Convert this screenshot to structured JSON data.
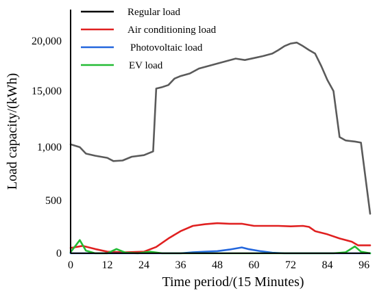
{
  "chart_data": {
    "type": "line",
    "xlabel": "Time period/(15 Minutes)",
    "ylabel": "Load capacity/(kWh)",
    "xlim": [
      0,
      98
    ],
    "x_ticks": [
      0,
      12,
      24,
      36,
      48,
      60,
      72,
      84,
      96
    ],
    "y_ticks": [
      {
        "label": "0",
        "level": 0
      },
      {
        "label": "500",
        "level": 1
      },
      {
        "label": "1,000",
        "level": 2
      },
      {
        "label": "15,000",
        "level": 3
      },
      {
        "label": "20,000",
        "level": 4
      }
    ],
    "y_axis_note": "non-linear (broken) y-axis; y values below are given in tick-level units",
    "legend_position": "top-left",
    "grid": false,
    "series": [
      {
        "name": "Regular load",
        "legend_color": "#000000",
        "color": "#5a5a5a",
        "points": [
          [
            0,
            2.05
          ],
          [
            3,
            2.0
          ],
          [
            5,
            1.88
          ],
          [
            8,
            1.84
          ],
          [
            12,
            1.8
          ],
          [
            14,
            1.74
          ],
          [
            17,
            1.75
          ],
          [
            20,
            1.82
          ],
          [
            24,
            1.85
          ],
          [
            27,
            1.92
          ],
          [
            28,
            3.05
          ],
          [
            30,
            3.08
          ],
          [
            32,
            3.12
          ],
          [
            34,
            3.25
          ],
          [
            36,
            3.3
          ],
          [
            39,
            3.35
          ],
          [
            42,
            3.45
          ],
          [
            45,
            3.5
          ],
          [
            48,
            3.55
          ],
          [
            51,
            3.6
          ],
          [
            54,
            3.65
          ],
          [
            57,
            3.62
          ],
          [
            60,
            3.66
          ],
          [
            63,
            3.7
          ],
          [
            66,
            3.75
          ],
          [
            68,
            3.82
          ],
          [
            70,
            3.9
          ],
          [
            72,
            3.95
          ],
          [
            74,
            3.97
          ],
          [
            76,
            3.9
          ],
          [
            78,
            3.82
          ],
          [
            80,
            3.75
          ],
          [
            82,
            3.5
          ],
          [
            84,
            3.22
          ],
          [
            86,
            3.0
          ],
          [
            88,
            2.18
          ],
          [
            90,
            2.12
          ],
          [
            93,
            2.1
          ],
          [
            95,
            2.08
          ],
          [
            97,
            1.2
          ],
          [
            98,
            0.75
          ]
        ]
      },
      {
        "name": "Air conditioning load",
        "color": "#e02020",
        "points": [
          [
            0,
            0.1
          ],
          [
            4,
            0.14
          ],
          [
            8,
            0.08
          ],
          [
            12,
            0.03
          ],
          [
            18,
            0.02
          ],
          [
            24,
            0.03
          ],
          [
            28,
            0.12
          ],
          [
            32,
            0.28
          ],
          [
            36,
            0.42
          ],
          [
            40,
            0.52
          ],
          [
            44,
            0.55
          ],
          [
            48,
            0.57
          ],
          [
            52,
            0.56
          ],
          [
            56,
            0.56
          ],
          [
            60,
            0.52
          ],
          [
            64,
            0.52
          ],
          [
            68,
            0.52
          ],
          [
            72,
            0.51
          ],
          [
            76,
            0.52
          ],
          [
            78,
            0.5
          ],
          [
            80,
            0.42
          ],
          [
            84,
            0.36
          ],
          [
            88,
            0.28
          ],
          [
            92,
            0.22
          ],
          [
            94,
            0.15
          ],
          [
            98,
            0.15
          ]
        ]
      },
      {
        "name": "Photovoltaic load",
        "color": "#2266dd",
        "points": [
          [
            0,
            0.0
          ],
          [
            30,
            0.0
          ],
          [
            36,
            0.0
          ],
          [
            40,
            0.02
          ],
          [
            44,
            0.03
          ],
          [
            48,
            0.04
          ],
          [
            52,
            0.07
          ],
          [
            56,
            0.11
          ],
          [
            58,
            0.08
          ],
          [
            62,
            0.04
          ],
          [
            66,
            0.01
          ],
          [
            70,
            0.0
          ],
          [
            98,
            0.0
          ]
        ]
      },
      {
        "name": "EV load",
        "color": "#22bb33",
        "points": [
          [
            0,
            0.02
          ],
          [
            3,
            0.25
          ],
          [
            5,
            0.05
          ],
          [
            8,
            0.0
          ],
          [
            12,
            0.0
          ],
          [
            15,
            0.08
          ],
          [
            18,
            0.01
          ],
          [
            22,
            0.0
          ],
          [
            26,
            0.03
          ],
          [
            30,
            0.0
          ],
          [
            36,
            0.0
          ],
          [
            50,
            0.0
          ],
          [
            60,
            0.0
          ],
          [
            70,
            0.0
          ],
          [
            86,
            0.0
          ],
          [
            90,
            0.02
          ],
          [
            93,
            0.13
          ],
          [
            95,
            0.03
          ],
          [
            98,
            0.0
          ]
        ]
      }
    ]
  }
}
